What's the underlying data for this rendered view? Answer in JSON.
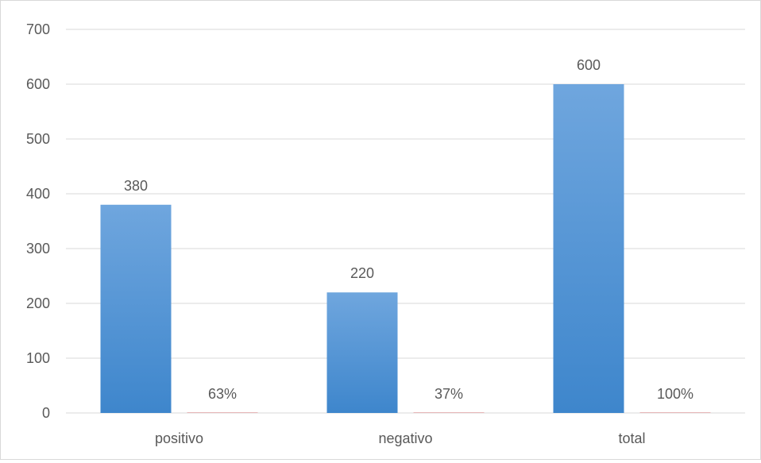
{
  "chart_data": {
    "type": "bar",
    "categories": [
      "positivo",
      "negativo",
      "total"
    ],
    "series": [
      {
        "values": [
          380,
          220,
          600
        ]
      },
      {
        "values": [
          0.63,
          0.37,
          1.0
        ]
      }
    ],
    "data_labels": [
      [
        "380",
        "220",
        "600"
      ],
      [
        "63%",
        "37%",
        "100%"
      ]
    ],
    "ylim": [
      0,
      700
    ],
    "yticks": [
      0,
      100,
      200,
      300,
      400,
      500,
      600,
      700
    ],
    "grid": true,
    "legend": "none",
    "colors": {
      "series1_top": "#6fa6de",
      "series1_bottom": "#3e86cc",
      "series2": "#e7b6b8",
      "gridline": "#d9d9d9",
      "text": "#595959"
    }
  }
}
